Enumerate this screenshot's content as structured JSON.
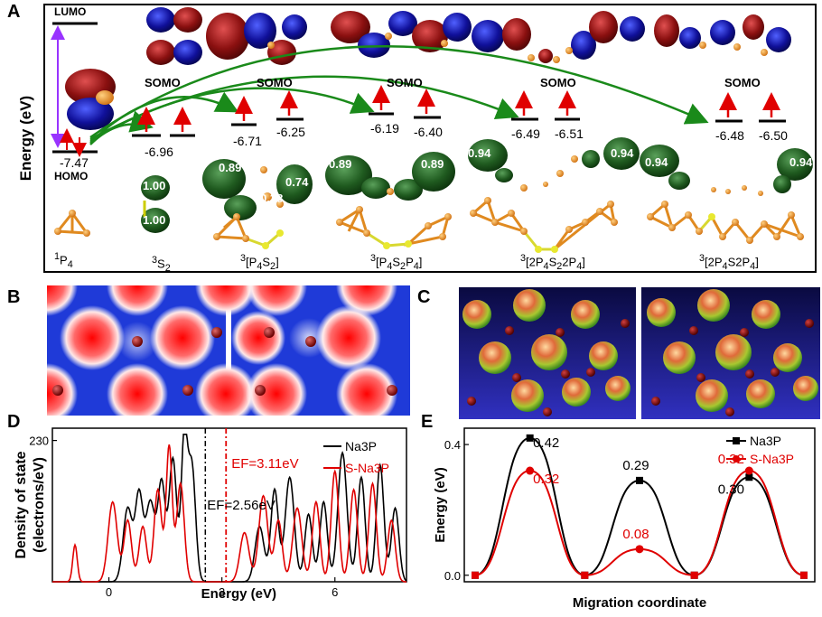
{
  "panel_a": {
    "label": "A",
    "y_axis_label": "Energy (eV)",
    "lumo_label": "LUMO",
    "homo_label": "HOMO",
    "homo_value": "-7.47",
    "somo_labels": [
      "SOMO",
      "SOMO",
      "SOMO",
      "SOMO",
      "SOMO"
    ],
    "levels": [
      "-6.96",
      "-6.71",
      "-6.25",
      "-6.19",
      "-6.40",
      "-6.49",
      "-6.51",
      "-6.48",
      "-6.50"
    ],
    "charges": [
      "1.00",
      "1.00",
      "0.89",
      "0.74",
      "0.38",
      "0.89",
      "0.89",
      "0.94",
      "0.94",
      "0.94",
      "0.94"
    ],
    "molecules": [
      {
        "sup": "1",
        "base": "P",
        "sub": "4",
        "rest": ""
      },
      {
        "sup": "3",
        "base": "S",
        "sub": "2",
        "rest": ""
      },
      {
        "sup": "3",
        "base": "[P",
        "sub": "4",
        "rest": "S",
        "sub2": "2",
        "tail": "]"
      },
      {
        "sup": "3",
        "base": "[P",
        "sub": "4",
        "rest": "S",
        "sub2": "2",
        "tail": "P",
        "sub3": "4",
        "end": "]"
      },
      {
        "sup": "3",
        "base": "[2P",
        "sub": "4",
        "rest": "S",
        "sub2": "2",
        "tail": "2P",
        "sub3": "4",
        "end": "]"
      },
      {
        "sup": "3",
        "base": "[2P",
        "sub": "4",
        "rest": "S2P",
        "sub2": "4",
        "tail": "]"
      }
    ]
  },
  "panel_b": {
    "label": "B"
  },
  "panel_c": {
    "label": "C"
  },
  "panel_d": {
    "label": "D"
  },
  "panel_e": {
    "label": "E"
  },
  "chart_data": [
    {
      "type": "line",
      "panel": "D",
      "xlabel": "Energy (eV)",
      "ylabel": "Density of state (electrons/eV)",
      "x_ticks": [
        "0",
        "3",
        "6"
      ],
      "y_ticks": [
        "230"
      ],
      "xlim": [
        -1.5,
        7.9
      ],
      "ylim": [
        0,
        250
      ],
      "series": [
        {
          "name": "Na3P",
          "color": "#000000"
        },
        {
          "name": "S-Na3P",
          "color": "#e00000"
        }
      ],
      "annotations": [
        {
          "text": "EF=3.11eV",
          "x": 3.11,
          "color": "#e00000"
        },
        {
          "text": "EF=2.56eV",
          "x": 2.56,
          "color": "#000000"
        }
      ]
    },
    {
      "type": "line",
      "panel": "E",
      "xlabel": "Migration coordinate",
      "ylabel": "Energy (eV)",
      "y_ticks": [
        "0.0",
        "0.4"
      ],
      "ylim": [
        -0.02,
        0.45
      ],
      "categories": [
        0,
        1,
        2,
        3,
        4,
        5,
        6
      ],
      "series": [
        {
          "name": "Na3P",
          "color": "#000000",
          "values": [
            0.0,
            0.42,
            0.0,
            0.29,
            0.0,
            0.3,
            0.0
          ]
        },
        {
          "name": "S-Na3P",
          "color": "#e00000",
          "values": [
            0.0,
            0.32,
            0.0,
            0.08,
            0.0,
            0.32,
            0.0
          ]
        }
      ],
      "data_labels": [
        {
          "text": "0.42",
          "color": "#000000"
        },
        {
          "text": "0.32",
          "color": "#e00000"
        },
        {
          "text": "0.29",
          "color": "#000000"
        },
        {
          "text": "0.08",
          "color": "#e00000"
        },
        {
          "text": "0.32",
          "color": "#e00000"
        },
        {
          "text": "0.30",
          "color": "#000000"
        }
      ]
    }
  ]
}
